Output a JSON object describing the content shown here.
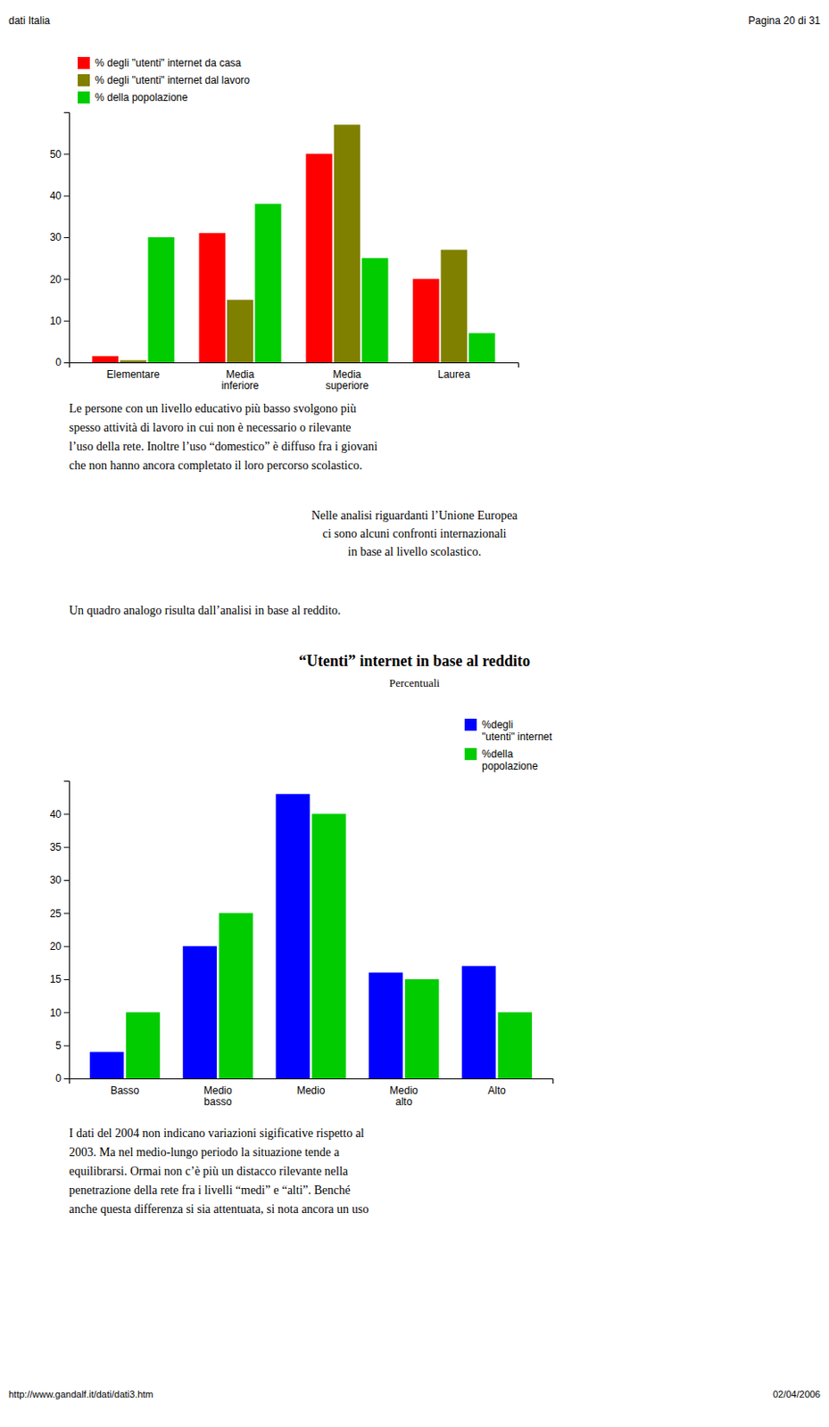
{
  "page_header_left": "dati Italia",
  "page_header_right": "Pagina 20 di 31",
  "page_footer_left": "http://www.gandalf.it/dati/dati3.htm",
  "page_footer_right": "02/04/2006",
  "text1": [
    "Le persone con un livello educativo più basso svolgono più",
    "spesso attività di lavoro in cui non è necessario o rilevante",
    "l’uso della rete. Inoltre l’uso “domestico” è diffuso fra i giovani",
    "che non hanno ancora completato il loro percorso scolastico."
  ],
  "text2": [
    "Nelle analisi riguardanti l’Unione Europea",
    "ci sono alcuni confronti internazionali",
    "in base al livello scolastico."
  ],
  "text3": [
    "Un quadro analogo risulta dall’analisi in base al reddito."
  ],
  "text4": [
    "I dati del 2004 non indicano variazioni sigificative rispetto al",
    "2003. Ma nel medio-lungo periodo la situazione tende a",
    "equilibrarsi. Ormai non c’è più un distacco rilevante nella",
    "penetrazione della rete fra i livelli “medi” e “alti”. Benché",
    "anche questa differenza si sia attentuata, si nota ancora un uso"
  ],
  "chart_data": [
    {
      "type": "bar",
      "categories": [
        "Elementare",
        "Media\ninferiore",
        "Media\nsuperiore",
        "Laurea"
      ],
      "series": [
        {
          "name": "% degli \"utenti\" internet da casa",
          "color": "#ff0000",
          "values": [
            1.5,
            31,
            50,
            20
          ]
        },
        {
          "name": "% degli \"utenti\" internet dal lavoro",
          "color": "#808000",
          "values": [
            0.5,
            15,
            57,
            27
          ]
        },
        {
          "name": "% della popolazione",
          "color": "#00cc00",
          "values": [
            30,
            38,
            25,
            7
          ]
        }
      ],
      "ylim": [
        0,
        60
      ],
      "yticks": [
        0,
        10,
        20,
        30,
        40,
        50
      ],
      "grid": false,
      "legend": "upper left"
    },
    {
      "type": "bar",
      "title": "“Utenti” internet in base al reddito",
      "subtitle": "Percentuali",
      "categories": [
        "Basso",
        "Medio\nbasso",
        "Medio",
        "Medio\nalto",
        "Alto"
      ],
      "series": [
        {
          "name": "%degli\n\"utenti\" internet",
          "color": "#0000ff",
          "values": [
            4,
            20,
            43,
            16,
            17
          ]
        },
        {
          "name": "%della\npopolazione",
          "color": "#00cc00",
          "values": [
            10,
            25,
            40,
            15,
            10
          ]
        }
      ],
      "ylim": [
        0,
        45
      ],
      "yticks": [
        0,
        5,
        10,
        15,
        20,
        25,
        30,
        35,
        40
      ],
      "grid": false,
      "legend": "upper right"
    }
  ]
}
